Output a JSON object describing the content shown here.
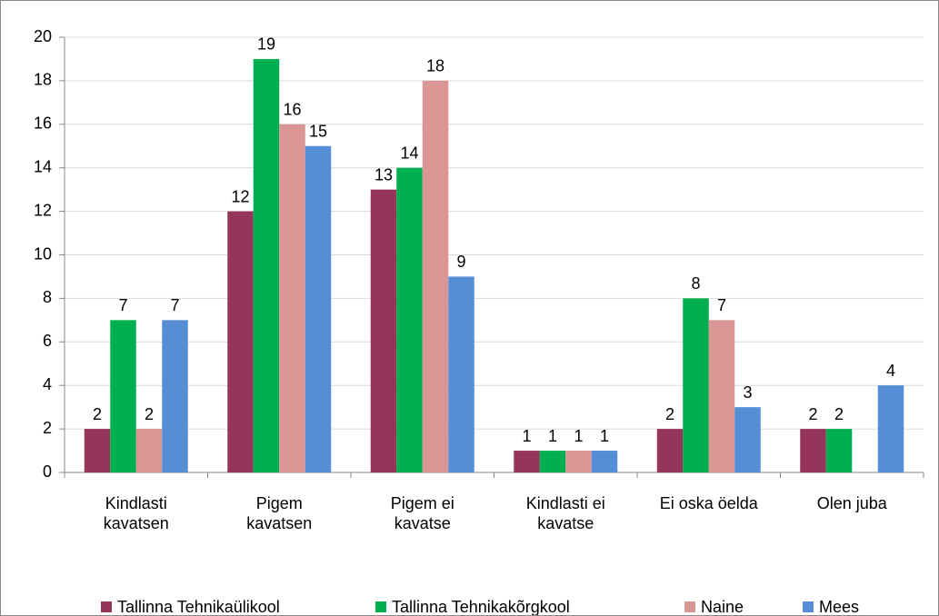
{
  "chart_data": {
    "type": "bar",
    "categories": [
      "Kindlasti\nkavatsen",
      "Pigem\nkavatsen",
      "Pigem ei\nkavatse",
      "Kindlasti ei\nkavatse",
      "Ei oska öelda",
      "Olen juba"
    ],
    "series": [
      {
        "name": "Tallinna Tehnikaülikool",
        "color": "#953559",
        "values": [
          2,
          12,
          13,
          1,
          2,
          2
        ]
      },
      {
        "name": "Tallinna Tehnikakõrgkool",
        "color": "#00b050",
        "values": [
          7,
          19,
          14,
          1,
          8,
          2
        ]
      },
      {
        "name": "Naine",
        "color": "#d99694",
        "values": [
          2,
          16,
          18,
          1,
          7,
          null
        ]
      },
      {
        "name": "Mees",
        "color": "#558ed5",
        "values": [
          7,
          15,
          9,
          1,
          3,
          4
        ]
      }
    ],
    "ylim": [
      0,
      20
    ],
    "yticks": [
      0,
      2,
      4,
      6,
      8,
      10,
      12,
      14,
      16,
      18,
      20
    ],
    "grid": true,
    "legend": "bottom"
  }
}
